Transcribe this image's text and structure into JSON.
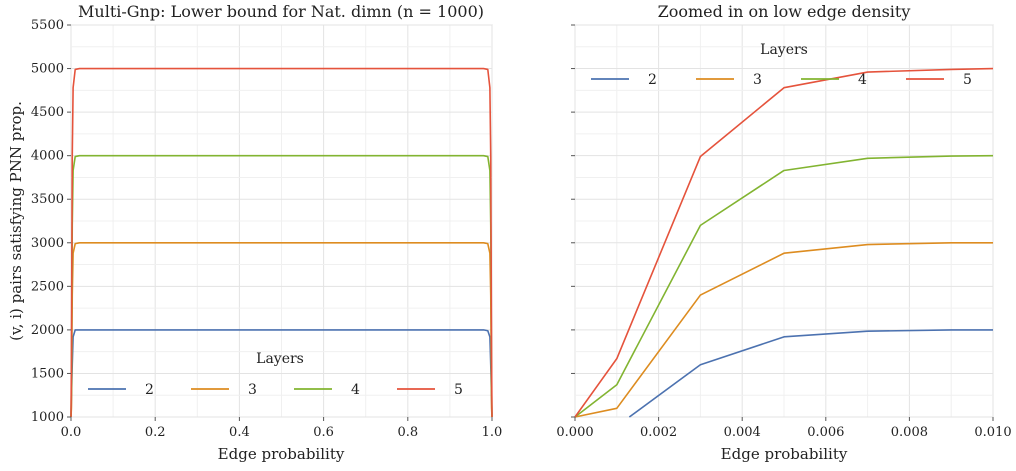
{
  "chart_data": [
    {
      "type": "line",
      "title": "Multi-Gnp: Lower bound for Nat. dimn (n = 1000)",
      "xlabel": "Edge probability",
      "ylabel": "(v, i) pairs satisfying PNN prop.",
      "xlim": [
        0.0,
        1.0
      ],
      "ylim": [
        1000,
        5500
      ],
      "xticks": [
        "0.0",
        "0.2",
        "0.4",
        "0.6",
        "0.8",
        "1.0"
      ],
      "yticks": [
        "1000",
        "1500",
        "2000",
        "2500",
        "3000",
        "3500",
        "4000",
        "4500",
        "5000",
        "5500"
      ],
      "grid": true,
      "legend": {
        "title": "Layers",
        "placement": "lower center"
      },
      "series": [
        {
          "name": "2",
          "color": "#4c72b0",
          "x": [
            0.0,
            0.003,
            0.005,
            0.01,
            0.02,
            0.5,
            0.98,
            0.99,
            0.995,
            0.997,
            1.0
          ],
          "y": [
            1000,
            1600,
            1920,
            2000,
            2000,
            2000,
            2000,
            1990,
            1920,
            1600,
            1000
          ]
        },
        {
          "name": "3",
          "color": "#dd8c20",
          "x": [
            0.0,
            0.001,
            0.003,
            0.005,
            0.01,
            0.02,
            0.5,
            0.98,
            0.99,
            0.995,
            0.997,
            0.999,
            1.0
          ],
          "y": [
            1000,
            1100,
            2400,
            2880,
            2990,
            3000,
            3000,
            3000,
            2990,
            2880,
            2400,
            1100,
            1000
          ]
        },
        {
          "name": "4",
          "color": "#82b431",
          "x": [
            0.0,
            0.001,
            0.003,
            0.005,
            0.01,
            0.02,
            0.5,
            0.98,
            0.99,
            0.995,
            0.997,
            0.999,
            1.0
          ],
          "y": [
            1000,
            1370,
            3200,
            3830,
            3990,
            4000,
            4000,
            4000,
            3990,
            3830,
            3200,
            1370,
            1000
          ]
        },
        {
          "name": "5",
          "color": "#e5533c",
          "x": [
            0.0,
            0.001,
            0.003,
            0.005,
            0.01,
            0.02,
            0.5,
            0.98,
            0.99,
            0.995,
            0.997,
            0.999,
            1.0
          ],
          "y": [
            1000,
            1670,
            3990,
            4780,
            4990,
            5000,
            5000,
            5000,
            4990,
            4780,
            3990,
            1670,
            1000
          ]
        }
      ]
    },
    {
      "type": "line",
      "title": "Zoomed in on low edge density",
      "xlabel": "Edge probability",
      "ylabel": "",
      "xlim": [
        0.0,
        0.01
      ],
      "ylim": [
        1000,
        5500
      ],
      "xticks": [
        "0.000",
        "0.002",
        "0.004",
        "0.006",
        "0.008",
        "0.010"
      ],
      "grid": true,
      "legend": {
        "title": "Layers",
        "placement": "upper center"
      },
      "series": [
        {
          "name": "2",
          "color": "#4c72b0",
          "x": [
            0.0013,
            0.003,
            0.005,
            0.007,
            0.009,
            0.01
          ],
          "y": [
            1000,
            1600,
            1920,
            1985,
            2000,
            2000
          ]
        },
        {
          "name": "3",
          "color": "#dd8c20",
          "x": [
            0.0,
            0.001,
            0.003,
            0.005,
            0.007,
            0.009,
            0.01
          ],
          "y": [
            1000,
            1100,
            2400,
            2880,
            2980,
            3000,
            3000
          ]
        },
        {
          "name": "4",
          "color": "#82b431",
          "x": [
            0.0,
            0.001,
            0.003,
            0.005,
            0.007,
            0.009,
            0.01
          ],
          "y": [
            1000,
            1370,
            3200,
            3830,
            3970,
            3995,
            4000
          ]
        },
        {
          "name": "5",
          "color": "#e5533c",
          "x": [
            0.0,
            0.001,
            0.003,
            0.005,
            0.007,
            0.009,
            0.01
          ],
          "y": [
            1000,
            1670,
            3990,
            4780,
            4960,
            4990,
            5000
          ]
        }
      ]
    }
  ]
}
